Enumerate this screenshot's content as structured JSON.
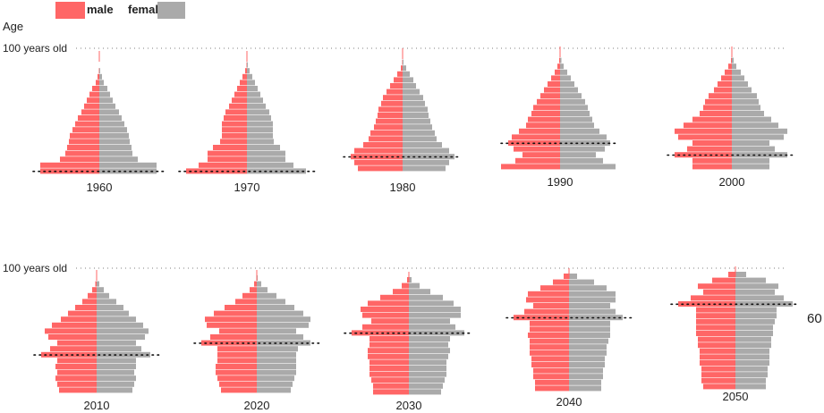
{
  "chart_data": {
    "type": "bar",
    "chart_kind": "population-pyramid-small-multiples",
    "legend": {
      "placement": "top-left",
      "entries": [
        {
          "name": "male",
          "color": "#ff6666"
        },
        {
          "name": "female",
          "color": "#aaaaaa"
        }
      ]
    },
    "y_axis_title": "Age",
    "top_age_label": "100 years old",
    "age_range": [
      0,
      100
    ],
    "age_band_years": 5,
    "marker_label": "60",
    "colors": {
      "male": "#ff6666",
      "female": "#aaaaaa",
      "guide": "#999999",
      "marker": "#111111"
    },
    "pyramids": [
      {
        "year": "1960",
        "marker_age": 0,
        "male": [
          6.6,
          6.6,
          4.4,
          3.8,
          3.6,
          3.4,
          3.3,
          3.0,
          2.7,
          2.4,
          2.0,
          1.7,
          1.4,
          1.1,
          0.8,
          0.4,
          0.2,
          0.05,
          0,
          0
        ],
        "female": [
          6.4,
          6.4,
          4.3,
          3.7,
          3.6,
          3.4,
          3.3,
          3.1,
          2.8,
          2.5,
          2.2,
          1.8,
          1.5,
          1.2,
          0.9,
          0.5,
          0.3,
          0.1,
          0,
          0
        ]
      },
      {
        "year": "1970",
        "marker_age": 0,
        "male": [
          6.8,
          5.4,
          4.4,
          4.4,
          3.8,
          3.0,
          2.8,
          2.8,
          2.8,
          2.6,
          2.4,
          2.0,
          1.7,
          1.4,
          1.1,
          0.8,
          0.5,
          0.2,
          0.05,
          0
        ],
        "female": [
          6.6,
          5.2,
          4.3,
          4.3,
          3.7,
          3.0,
          2.9,
          2.9,
          2.9,
          2.7,
          2.5,
          2.1,
          1.8,
          1.5,
          1.2,
          0.9,
          0.6,
          0.3,
          0.1,
          0
        ]
      },
      {
        "year": "1980",
        "marker_age": 10,
        "male": [
          5.0,
          5.4,
          5.8,
          5.4,
          4.4,
          3.8,
          3.6,
          3.2,
          3.0,
          2.8,
          2.7,
          2.4,
          2.2,
          1.8,
          1.4,
          1.0,
          0.6,
          0.2,
          0.05,
          0
        ],
        "female": [
          4.8,
          5.2,
          5.8,
          5.2,
          4.4,
          3.8,
          3.6,
          3.3,
          3.1,
          2.9,
          2.8,
          2.5,
          2.3,
          1.9,
          1.5,
          1.2,
          0.8,
          0.4,
          0.1,
          0
        ]
      },
      {
        "year": "1990",
        "marker_age": 20,
        "male": [
          6.6,
          5.0,
          4.2,
          5.2,
          5.8,
          5.4,
          4.6,
          3.8,
          3.6,
          3.2,
          3.0,
          2.6,
          2.2,
          1.8,
          1.4,
          1.0,
          0.6,
          0.3,
          0.1,
          0
        ],
        "female": [
          6.2,
          4.8,
          4.0,
          5.0,
          5.6,
          5.2,
          4.4,
          3.8,
          3.6,
          3.3,
          3.1,
          2.8,
          2.4,
          2.0,
          1.6,
          1.2,
          0.8,
          0.4,
          0.15,
          0
        ]
      },
      {
        "year": "2000",
        "marker_age": 10,
        "male": [
          4.4,
          4.4,
          6.4,
          5.0,
          4.4,
          6.0,
          6.4,
          5.4,
          4.4,
          3.6,
          3.2,
          3.0,
          2.6,
          2.0,
          1.6,
          1.2,
          0.8,
          0.4,
          0.1,
          0
        ],
        "female": [
          4.2,
          4.2,
          6.2,
          4.8,
          4.2,
          5.8,
          6.2,
          5.2,
          4.4,
          3.6,
          3.2,
          3.0,
          2.8,
          2.2,
          1.8,
          1.4,
          1.0,
          0.5,
          0.2,
          0
        ]
      },
      {
        "year": "2010",
        "marker_age": 30,
        "male": [
          4.2,
          4.4,
          4.6,
          4.4,
          4.6,
          4.4,
          6.2,
          5.2,
          4.4,
          5.4,
          5.8,
          5.0,
          4.0,
          3.2,
          2.4,
          1.6,
          1.0,
          0.5,
          0.15,
          0
        ],
        "female": [
          4.0,
          4.2,
          4.4,
          4.2,
          4.4,
          4.4,
          6.0,
          5.0,
          4.4,
          5.4,
          5.8,
          5.2,
          4.4,
          3.6,
          3.0,
          2.2,
          1.4,
          0.8,
          0.3,
          0
        ],
        "note": "top band 95+ slightly shaded"
      },
      {
        "year": "2020",
        "marker_age": 40,
        "male": [
          4.0,
          4.2,
          4.4,
          4.6,
          4.6,
          4.4,
          4.4,
          4.4,
          6.2,
          5.2,
          4.2,
          5.6,
          5.8,
          4.8,
          3.6,
          2.4,
          1.6,
          0.8,
          0.3,
          0.05
        ],
        "female": [
          3.8,
          4.0,
          4.2,
          4.4,
          4.4,
          4.4,
          4.4,
          4.6,
          6.0,
          5.2,
          4.4,
          5.8,
          6.0,
          5.2,
          4.2,
          3.2,
          2.2,
          1.2,
          0.5,
          0.1
        ]
      },
      {
        "year": "2030",
        "marker_age": 50,
        "male": [
          4.0,
          4.0,
          4.2,
          4.4,
          4.4,
          4.4,
          4.6,
          4.6,
          4.4,
          4.4,
          6.4,
          5.2,
          4.2,
          5.2,
          5.4,
          4.6,
          3.2,
          1.8,
          0.8,
          0.2
        ],
        "female": [
          3.6,
          3.8,
          4.0,
          4.2,
          4.2,
          4.2,
          4.4,
          4.6,
          4.4,
          4.6,
          6.2,
          5.2,
          4.6,
          5.8,
          5.8,
          5.0,
          3.8,
          2.4,
          1.2,
          0.3
        ]
      },
      {
        "year": "2040",
        "marker_age": 60,
        "male": [
          3.8,
          3.8,
          4.0,
          4.0,
          4.2,
          4.2,
          4.4,
          4.4,
          4.4,
          4.6,
          4.4,
          4.4,
          6.2,
          5.0,
          4.0,
          4.8,
          4.6,
          3.2,
          1.8,
          0.6
        ],
        "female": [
          3.6,
          3.6,
          3.8,
          3.8,
          4.0,
          4.0,
          4.2,
          4.2,
          4.4,
          4.6,
          4.6,
          4.6,
          6.0,
          5.2,
          4.6,
          5.2,
          5.2,
          4.2,
          2.8,
          0.9
        ]
      },
      {
        "year": "2050",
        "marker_age": 70,
        "male": [
          3.6,
          3.8,
          3.8,
          3.8,
          4.0,
          4.0,
          4.0,
          4.2,
          4.2,
          4.4,
          4.4,
          4.4,
          4.4,
          4.4,
          6.4,
          5.0,
          3.6,
          4.2,
          2.6,
          0.8
        ],
        "female": [
          3.4,
          3.4,
          3.6,
          3.6,
          3.8,
          3.8,
          3.8,
          4.0,
          4.0,
          4.2,
          4.2,
          4.4,
          4.6,
          4.6,
          6.4,
          5.4,
          4.4,
          4.8,
          3.4,
          1.2
        ]
      }
    ]
  }
}
